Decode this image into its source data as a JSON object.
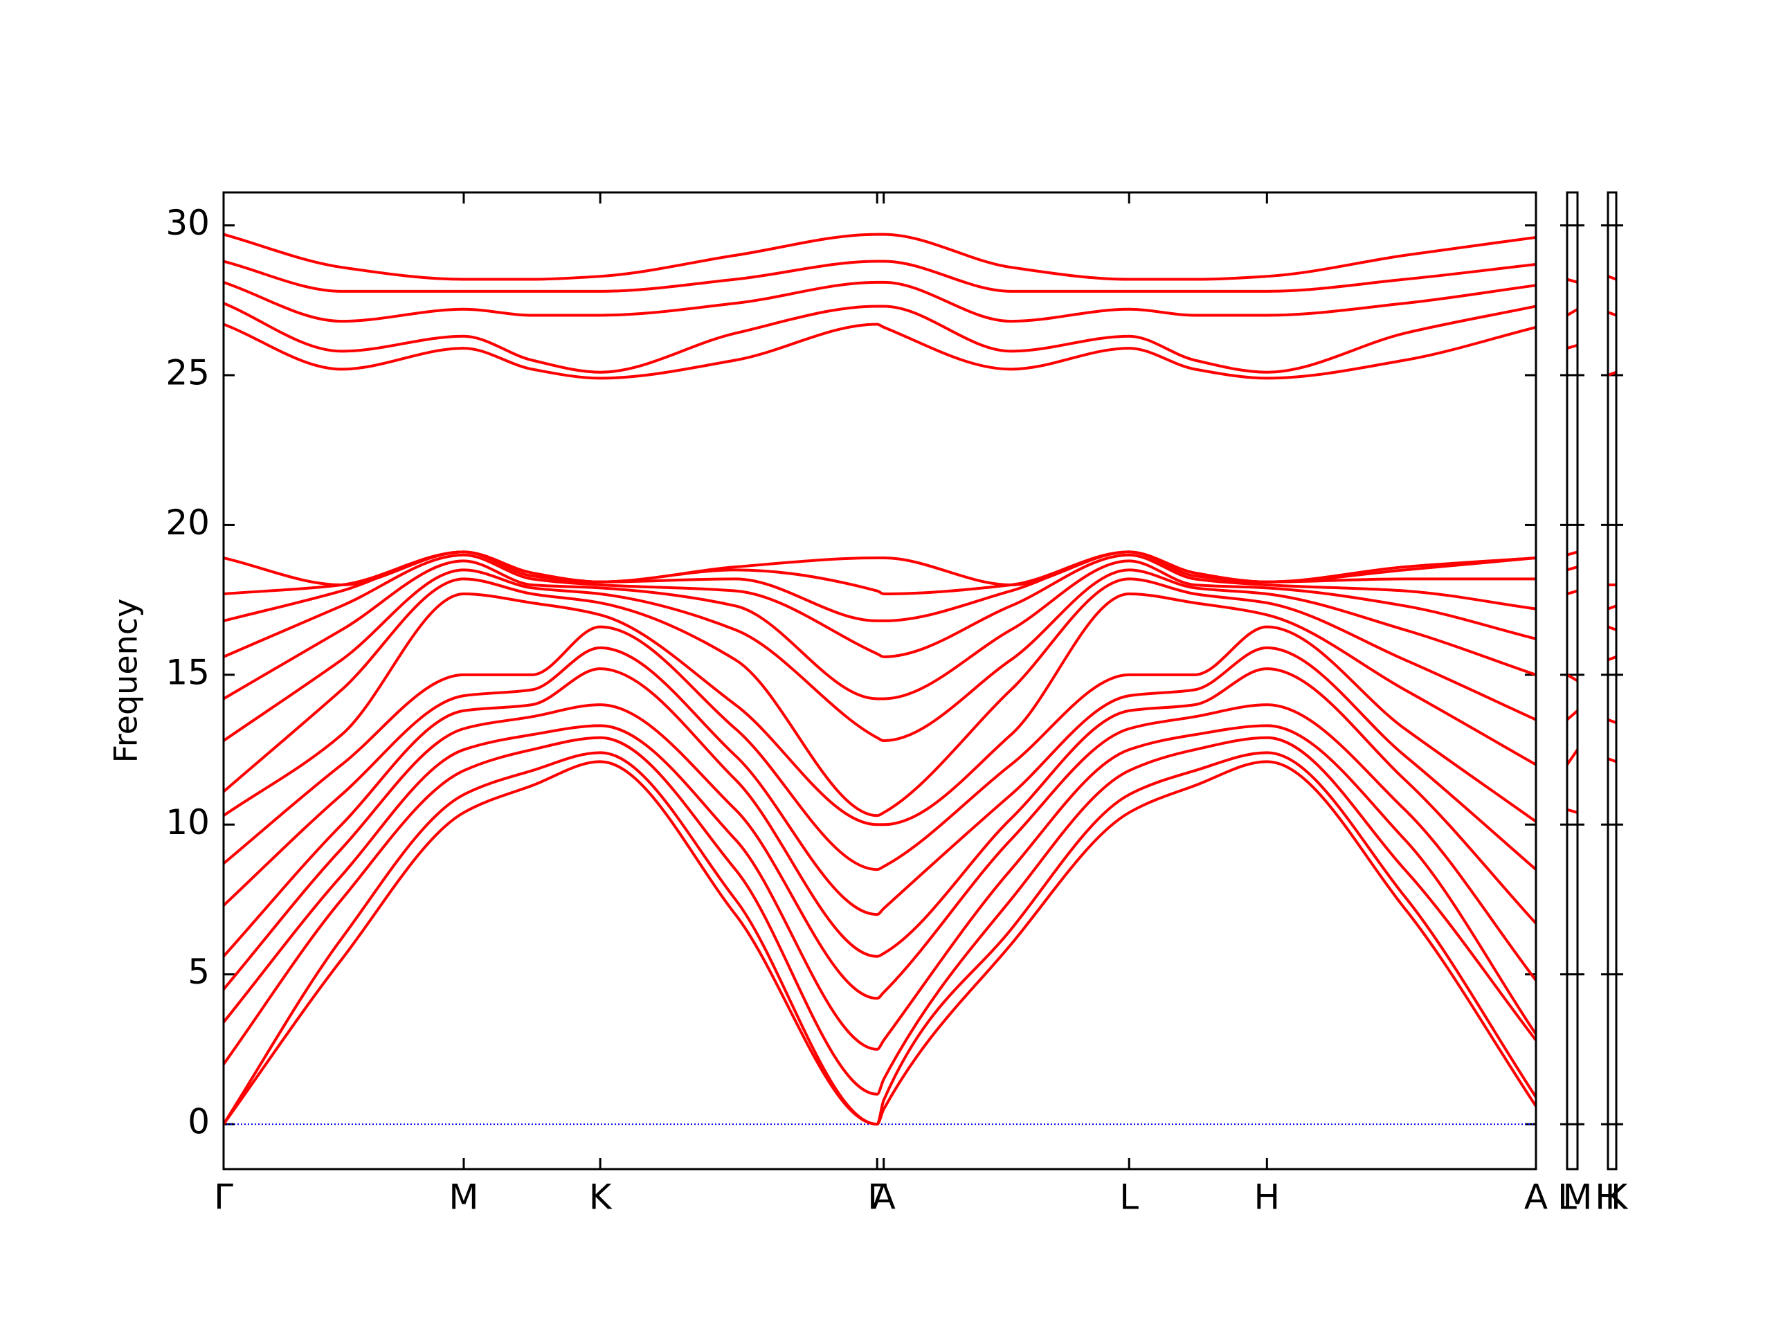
{
  "chart_data": [
    {
      "type": "line",
      "ylabel": "Frequency",
      "x": [
        0,
        0.09,
        0.183,
        0.235,
        0.287,
        0.39,
        0.498,
        0.503,
        0.6,
        0.69,
        0.74,
        0.795,
        0.9,
        1.0
      ],
      "xlim": [
        0,
        1.0
      ],
      "xticks": [
        {
          "value": 0,
          "label": "Γ"
        },
        {
          "value": 0.183,
          "label": "M"
        },
        {
          "value": 0.287,
          "label": "K"
        },
        {
          "value": 0.498,
          "label": "Γ"
        },
        {
          "value": 0.503,
          "label": "A"
        },
        {
          "value": 0.69,
          "label": "L"
        },
        {
          "value": 0.795,
          "label": "H"
        },
        {
          "value": 1.0,
          "label": "A"
        }
      ],
      "ylim": [
        -1.5,
        31.1
      ],
      "yticks": [
        0,
        5,
        10,
        15,
        20,
        25,
        30
      ],
      "hline": {
        "value": 0,
        "color": "#0000ff"
      },
      "series": [
        {
          "color": "#ff0000",
          "values": [
            0,
            5.5,
            10.4,
            11.3,
            12.1,
            7,
            0,
            0.5,
            6,
            10.4,
            11.3,
            12.1,
            7.2,
            0.6
          ]
        },
        {
          "color": "#ff0000",
          "values": [
            0,
            6.2,
            11.0,
            11.8,
            12.4,
            7.5,
            0,
            0.8,
            6.5,
            11.0,
            11.8,
            12.4,
            7.6,
            0.9
          ]
        },
        {
          "color": "#ff0000",
          "values": [
            2,
            7.5,
            11.8,
            12.5,
            12.9,
            8.5,
            1.0,
            1.5,
            7.5,
            11.8,
            12.5,
            12.9,
            8.5,
            2.8
          ]
        },
        {
          "color": "#ff0000",
          "values": [
            3.4,
            8.3,
            12.5,
            13.0,
            13.3,
            9.5,
            2.5,
            2.8,
            8.5,
            12.5,
            13.0,
            13.3,
            9.5,
            3.0
          ]
        },
        {
          "color": "#ff0000",
          "values": [
            4.5,
            9.2,
            13.2,
            13.6,
            14.0,
            10.5,
            4.2,
            4.4,
            9.5,
            13.2,
            13.6,
            14.0,
            10.5,
            4.8
          ]
        },
        {
          "color": "#ff0000",
          "values": [
            5.6,
            10.0,
            13.8,
            14.0,
            15.2,
            11.5,
            5.6,
            5.7,
            10.2,
            13.8,
            14.0,
            15.2,
            11.5,
            6.7
          ]
        },
        {
          "color": "#ff0000",
          "values": [
            7.3,
            11.0,
            14.3,
            14.5,
            15.9,
            12.3,
            7.0,
            7.2,
            11.0,
            14.3,
            14.5,
            15.9,
            12.3,
            8.5
          ]
        },
        {
          "color": "#ff0000",
          "values": [
            8.7,
            12.0,
            15.0,
            15.0,
            16.6,
            13.2,
            8.5,
            8.6,
            12.0,
            15.0,
            15.0,
            16.6,
            13.2,
            10.1
          ]
        },
        {
          "color": "#ff0000",
          "values": [
            10.3,
            13.0,
            17.7,
            17.4,
            17.0,
            14.0,
            10.0,
            10.0,
            13.0,
            17.7,
            17.4,
            17.0,
            14.5,
            12.0
          ]
        },
        {
          "color": "#ff0000",
          "values": [
            11.1,
            14.5,
            18.2,
            17.7,
            17.4,
            15.5,
            10.3,
            10.4,
            14.5,
            18.2,
            17.7,
            17.4,
            15.5,
            13.5
          ]
        },
        {
          "color": "#ff0000",
          "values": [
            12.8,
            15.5,
            18.5,
            17.9,
            17.7,
            16.5,
            12.9,
            12.8,
            15.5,
            18.5,
            17.9,
            17.7,
            16.5,
            15.0
          ]
        },
        {
          "color": "#ff0000",
          "values": [
            14.2,
            16.5,
            18.8,
            18.0,
            17.9,
            17.3,
            14.2,
            14.2,
            16.5,
            18.8,
            18.0,
            17.9,
            17.3,
            16.2
          ]
        },
        {
          "color": "#ff0000",
          "values": [
            15.6,
            17.3,
            19.0,
            18.2,
            18.0,
            17.8,
            15.7,
            15.6,
            17.3,
            19.0,
            18.2,
            18.0,
            17.8,
            17.2
          ]
        },
        {
          "color": "#ff0000",
          "values": [
            16.8,
            17.8,
            19.1,
            18.3,
            18.1,
            18.2,
            16.8,
            16.8,
            17.8,
            19.1,
            18.3,
            18.1,
            18.2,
            18.2
          ]
        },
        {
          "color": "#ff0000",
          "values": [
            17.7,
            18.0,
            19.1,
            18.4,
            18.1,
            18.5,
            17.8,
            17.7,
            18.0,
            19.1,
            18.4,
            18.1,
            18.5,
            18.9
          ]
        },
        {
          "color": "#ff0000",
          "values": [
            18.9,
            18.0,
            19.1,
            18.4,
            18.1,
            18.6,
            18.9,
            18.9,
            18.0,
            19.1,
            18.4,
            18.1,
            18.6,
            18.9
          ]
        },
        {
          "color": "#ff0000",
          "values": [
            26.7,
            25.2,
            25.9,
            25.2,
            24.9,
            25.5,
            26.7,
            26.6,
            25.2,
            25.9,
            25.2,
            24.9,
            25.5,
            26.6
          ]
        },
        {
          "color": "#ff0000",
          "values": [
            27.4,
            25.8,
            26.3,
            25.5,
            25.1,
            26.4,
            27.3,
            27.3,
            25.8,
            26.3,
            25.5,
            25.1,
            26.4,
            27.3
          ]
        },
        {
          "color": "#ff0000",
          "values": [
            28.1,
            26.8,
            27.2,
            27.0,
            27.0,
            27.4,
            28.1,
            28.1,
            26.8,
            27.2,
            27.0,
            27.0,
            27.4,
            28.0
          ]
        },
        {
          "color": "#ff0000",
          "values": [
            28.8,
            27.8,
            27.8,
            27.8,
            27.8,
            28.2,
            28.8,
            28.8,
            27.8,
            27.8,
            27.8,
            27.8,
            28.2,
            28.7
          ]
        },
        {
          "color": "#ff0000",
          "values": [
            29.7,
            28.6,
            28.2,
            28.2,
            28.3,
            29.0,
            29.7,
            29.7,
            28.6,
            28.2,
            28.2,
            28.3,
            29.0,
            29.6
          ]
        }
      ]
    },
    {
      "type": "line",
      "x": [
        0,
        1
      ],
      "xlim": [
        0,
        1
      ],
      "xticks": [
        {
          "value": 0,
          "label": "L"
        },
        {
          "value": 1,
          "label": "M"
        }
      ],
      "ylim": [
        -1.5,
        31.1
      ],
      "yticks": [
        0,
        5,
        10,
        15,
        20,
        25,
        30
      ],
      "series": [
        {
          "color": "#ff0000",
          "values": [
            10.5,
            10.4
          ]
        },
        {
          "color": "#ff0000",
          "values": [
            12,
            12.5
          ]
        },
        {
          "color": "#ff0000",
          "values": [
            13.5,
            13.8
          ]
        },
        {
          "color": "#ff0000",
          "values": [
            15,
            14.8
          ]
        },
        {
          "color": "#ff0000",
          "values": [
            17.7,
            17.8
          ]
        },
        {
          "color": "#ff0000",
          "values": [
            18.5,
            18.6
          ]
        },
        {
          "color": "#ff0000",
          "values": [
            19,
            19.1
          ]
        },
        {
          "color": "#ff0000",
          "values": [
            25.9,
            26
          ]
        },
        {
          "color": "#ff0000",
          "values": [
            27,
            27.2
          ]
        },
        {
          "color": "#ff0000",
          "values": [
            28.2,
            28.1
          ]
        }
      ]
    },
    {
      "type": "line",
      "x": [
        0,
        1
      ],
      "xlim": [
        0,
        1
      ],
      "xticks": [
        {
          "value": 0,
          "label": "H"
        },
        {
          "value": 1,
          "label": "K"
        }
      ],
      "ylim": [
        -1.5,
        31.1
      ],
      "yticks": [
        0,
        5,
        10,
        15,
        20,
        25,
        30
      ],
      "series": [
        {
          "color": "#ff0000",
          "values": [
            12.2,
            12.1
          ]
        },
        {
          "color": "#ff0000",
          "values": [
            13.5,
            13.4
          ]
        },
        {
          "color": "#ff0000",
          "values": [
            15.5,
            15.6
          ]
        },
        {
          "color": "#ff0000",
          "values": [
            16.6,
            16.5
          ]
        },
        {
          "color": "#ff0000",
          "values": [
            17.2,
            17.3
          ]
        },
        {
          "color": "#ff0000",
          "values": [
            18,
            18
          ]
        },
        {
          "color": "#ff0000",
          "values": [
            25,
            25.1
          ]
        },
        {
          "color": "#ff0000",
          "values": [
            27.1,
            27
          ]
        },
        {
          "color": "#ff0000",
          "values": [
            28.3,
            28.2
          ]
        }
      ]
    }
  ]
}
